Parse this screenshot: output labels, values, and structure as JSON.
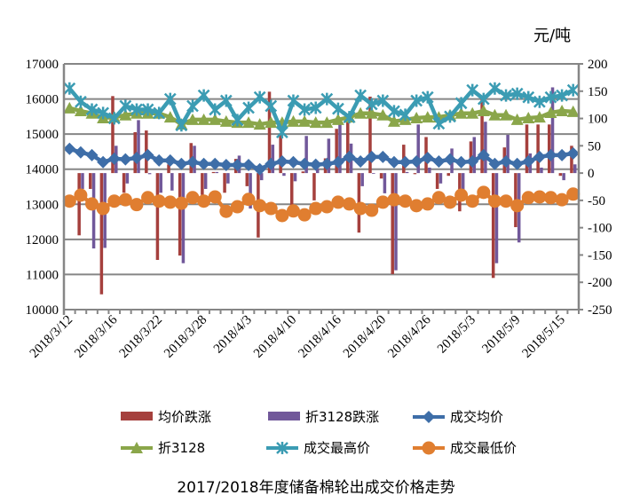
{
  "chart_data": {
    "type": "bar+line",
    "title": "2017/2018年度储备棉轮出成交价格走势",
    "right_axis_unit": "元/吨",
    "left_axis": {
      "ylim": [
        10000,
        17000
      ],
      "ticks": [
        17000,
        16000,
        15000,
        14000,
        13000,
        12000,
        11000,
        10000
      ]
    },
    "right_axis": {
      "ylim": [
        -250,
        200
      ],
      "ticks": [
        200,
        150,
        100,
        50,
        0,
        -50,
        -100,
        -150,
        -200,
        -250
      ]
    },
    "grid": true,
    "legend_position": "bottom",
    "category_count": 46,
    "x_tick_labels": {
      "0": "2018/3/12",
      "4": "2018/3/16",
      "8": "2018/3/22",
      "12": "2018/3/28",
      "16": "2018/4/3",
      "20": "2018/4/10",
      "24": "2018/4/16",
      "28": "2018/4/20",
      "32": "2018/4/26",
      "36": "2018/5/3",
      "40": "2018/5/9",
      "44": "2018/5/15"
    },
    "series": [
      {
        "name": "均价跌涨",
        "type": "bar",
        "axis": "right",
        "color": "#A5403D",
        "values": [
          null,
          -114,
          -29,
          -222,
          141,
          -36,
          75,
          78,
          -159,
          16,
          -151,
          55,
          -40,
          2,
          -36,
          26,
          -24,
          -118,
          149,
          71,
          -62,
          3,
          -50,
          27,
          81,
          96,
          -109,
          140,
          -10,
          -185,
          52,
          -2,
          66,
          -29,
          -5,
          -70,
          58,
          141,
          -192,
          47,
          -99,
          89,
          89,
          89,
          -5,
          50
        ]
      },
      {
        "name": "折3128跌涨",
        "type": "bar",
        "axis": "right",
        "color": "#71589A",
        "values": [
          null,
          -29,
          -138,
          -137,
          50,
          -19,
          97,
          -2,
          -36,
          -32,
          -165,
          50,
          -29,
          2,
          -19,
          32,
          -65,
          -13,
          52,
          -5,
          -15,
          68,
          8,
          63,
          94,
          54,
          -24,
          0,
          -37,
          -178,
          2,
          89,
          10,
          -19,
          45,
          -40,
          66,
          94,
          -165,
          70,
          -127,
          36,
          10,
          157,
          -13,
          16
        ]
      },
      {
        "name": "成交均价",
        "type": "line",
        "axis": "left",
        "color": "#3E6EA8",
        "marker": "diamond",
        "values": [
          14580,
          14480,
          14400,
          14200,
          14300,
          14280,
          14320,
          14400,
          14250,
          14250,
          14150,
          14200,
          14150,
          14150,
          14120,
          14120,
          14120,
          14000,
          14150,
          14220,
          14200,
          14150,
          14130,
          14150,
          14200,
          14350,
          14220,
          14350,
          14350,
          14200,
          14200,
          14220,
          14320,
          14220,
          14280,
          14200,
          14220,
          14400,
          14150,
          14220,
          14150,
          14220,
          14350,
          14400,
          14400,
          14450
        ]
      },
      {
        "name": "折3128",
        "type": "line",
        "axis": "left",
        "color": "#8AA64A",
        "marker": "triangle",
        "values": [
          15740,
          15660,
          15590,
          15460,
          15480,
          15540,
          15590,
          15590,
          15590,
          15480,
          15280,
          15410,
          15410,
          15410,
          15360,
          15330,
          15330,
          15280,
          15330,
          15330,
          15360,
          15360,
          15330,
          15330,
          15410,
          15480,
          15590,
          15590,
          15540,
          15360,
          15410,
          15460,
          15480,
          15480,
          15540,
          15590,
          15590,
          15660,
          15540,
          15540,
          15410,
          15460,
          15480,
          15610,
          15660,
          15640
        ]
      },
      {
        "name": "成交最高价",
        "type": "line",
        "axis": "left",
        "color": "#3B9CB3",
        "marker": "star",
        "values": [
          16300,
          15920,
          15700,
          15600,
          15450,
          15800,
          15700,
          15700,
          15600,
          16000,
          15250,
          15800,
          16100,
          15700,
          15950,
          15400,
          15750,
          16050,
          15800,
          15050,
          15950,
          15700,
          15750,
          16000,
          15720,
          15480,
          16100,
          15850,
          15950,
          15650,
          15550,
          15950,
          16050,
          15300,
          15500,
          15880,
          16250,
          16000,
          16300,
          16100,
          16150,
          16050,
          15920,
          16050,
          16100,
          16250
        ]
      },
      {
        "name": "成交最低价",
        "type": "line",
        "axis": "left",
        "color": "#E07E30",
        "marker": "circle",
        "values": [
          13090,
          13260,
          13010,
          12880,
          13090,
          13130,
          12990,
          13190,
          13090,
          13060,
          13030,
          13190,
          13090,
          13210,
          12800,
          12930,
          13140,
          12960,
          12880,
          12680,
          12810,
          12700,
          12880,
          12930,
          13060,
          13010,
          12880,
          12830,
          13060,
          13130,
          13090,
          12960,
          13010,
          13190,
          13060,
          13260,
          13090,
          13340,
          13090,
          13090,
          12960,
          13190,
          13210,
          13190,
          13130,
          13290
        ]
      }
    ]
  }
}
